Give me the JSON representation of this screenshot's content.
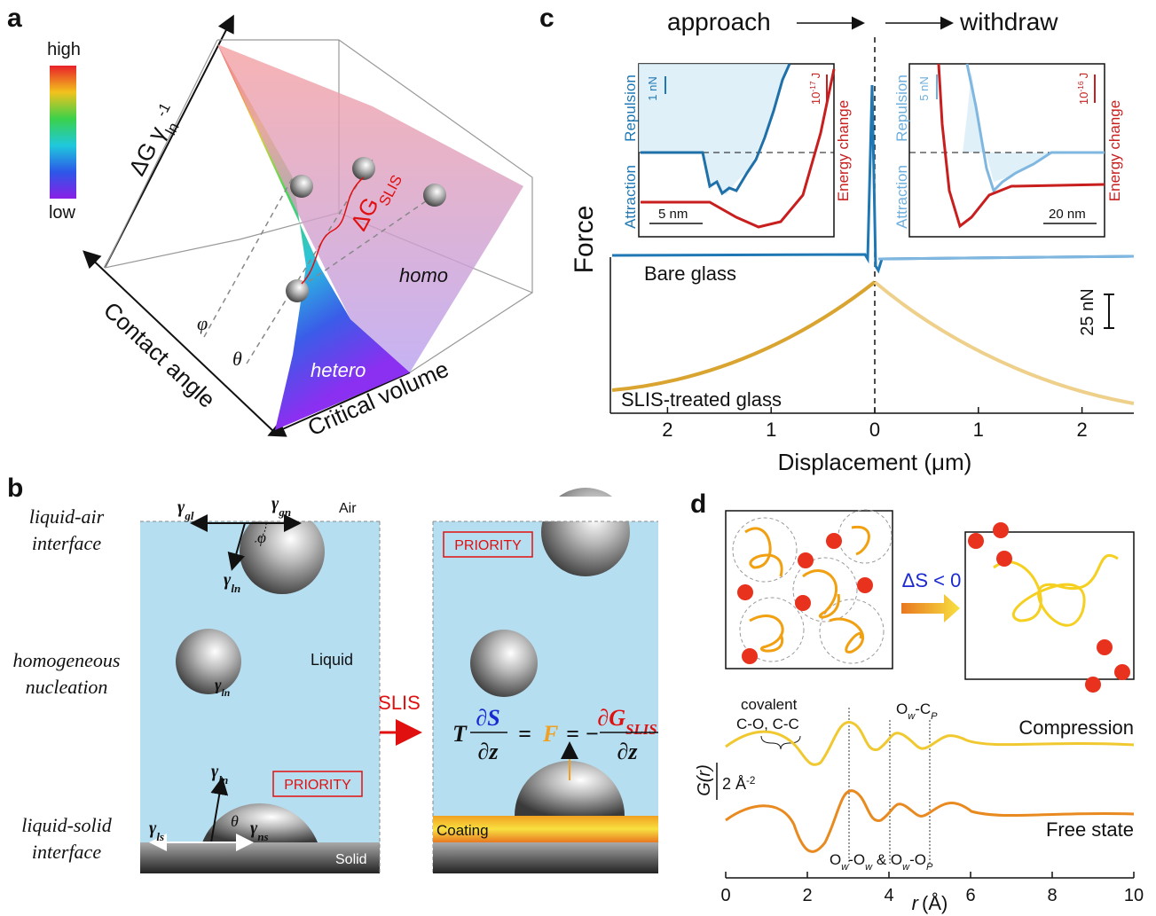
{
  "panel_a": {
    "label": "a",
    "colorbar_high": "high",
    "colorbar_low": "low",
    "z_axis": {
      "main": "ΔG γ",
      "sub": "ln",
      "sup": "-1"
    },
    "x_axis": "Contact angle",
    "y_axis": "Critical volume",
    "phi": "φ",
    "theta": "θ",
    "delta_g": {
      "main": "ΔG",
      "sub": "SLIS"
    },
    "homo": "homo",
    "hetero": "hetero"
  },
  "panel_b": {
    "label": "b",
    "rows": [
      [
        "liquid-air",
        "interface"
      ],
      [
        "homogeneous",
        "nucleation"
      ],
      [
        "liquid-solid",
        "interface"
      ]
    ],
    "gamma_gl": {
      "main": "γ",
      "sub": "gl"
    },
    "gamma_gn": {
      "main": "γ",
      "sub": "gn"
    },
    "air": "Air",
    "gamma_ln": {
      "main": "γ",
      "sub": "ln"
    },
    "liquid": "Liquid",
    "priority": "PRIORITY",
    "gamma_ls": {
      "main": "γ",
      "sub": "ls"
    },
    "gamma_ns": {
      "main": "γ",
      "sub": "ns"
    },
    "theta": "θ",
    "phi": "φ",
    "solid": "Solid",
    "arrow": "SLIS",
    "coating": "Coating",
    "equation": {
      "T": "T",
      "dS": "∂S",
      "dz": "∂z",
      "eq1": "=",
      "F": "F",
      "eq2": "= −",
      "dG": "∂G",
      "dG_sub": "SLIS",
      "dz2": "∂z"
    }
  },
  "panel_c": {
    "label": "c",
    "approach": "approach",
    "withdraw": "withdraw",
    "y_axis": "Force",
    "x_axis": "Displacement (μm)",
    "xlim": [
      -2.5,
      2.5
    ],
    "xticks": [
      {
        "value": -2,
        "label": "2"
      },
      {
        "value": -1,
        "label": "1"
      },
      0,
      1,
      2
    ],
    "bare": "Bare glass",
    "slis": "SLIS-treated glass",
    "scale": "25 nN",
    "insets": [
      {
        "attraction": "Attraction",
        "repulsion": "Repulsion",
        "energy": "Energy change",
        "force_scale": "1 nN",
        "energy_scale": {
          "base": "10",
          "sup": "-17",
          "unit": "J"
        },
        "length_scale": "5 nm"
      },
      {
        "attraction": "Attraction",
        "repulsion": "Repulsion",
        "energy": "Energy change",
        "force_scale": "5 nN",
        "energy_scale": {
          "base": "10",
          "sup": "-16",
          "unit": "J"
        },
        "length_scale": "20 nm"
      }
    ]
  },
  "panel_d": {
    "label": "d",
    "delta_s": "ΔS < 0",
    "covalent": "covalent",
    "bonds": "C-O, C-C",
    "ow_cp": [
      [
        "O",
        "w"
      ],
      [
        "-C",
        "P"
      ]
    ],
    "ow_ow": [
      [
        "O",
        "w"
      ],
      [
        "-O",
        "w"
      ],
      [
        " & O",
        "w"
      ],
      [
        "-O",
        "P"
      ]
    ],
    "compression": "Compression",
    "free": "Free state",
    "y_axis": "G(r)",
    "scale": {
      "base": "2 Å",
      "sup": "-2"
    },
    "x_axis": {
      "var": "r",
      "unit": "(Å)"
    },
    "xlim": [
      0,
      10
    ],
    "xticks": [
      0,
      2,
      4,
      6,
      8,
      10
    ]
  }
}
